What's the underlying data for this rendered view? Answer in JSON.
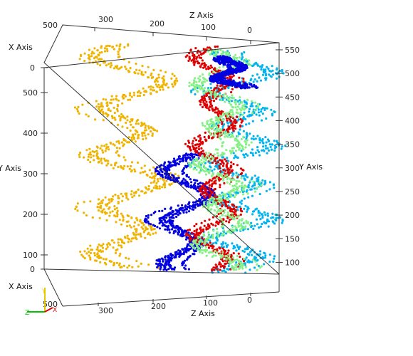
{
  "chart_data": {
    "type": "scatter",
    "title": "",
    "axes": {
      "x_title": "X Axis",
      "y_title": "Y Axis",
      "z_title": "Z Axis",
      "z_ticks": [
        "300",
        "200",
        "100",
        "0"
      ],
      "x_ticks_top": [
        "500",
        "0"
      ],
      "x_ticks_bottom": [
        "0",
        "500"
      ],
      "y_ticks_left": [
        "500",
        "400",
        "300",
        "200",
        "100"
      ],
      "y_ticks_right": [
        "550",
        "500",
        "450",
        "400",
        "350",
        "300",
        "250",
        "200",
        "150",
        "100"
      ],
      "y_range_left": [
        0,
        500
      ],
      "y_range_right": [
        75,
        565
      ],
      "z_range": [
        0,
        370
      ]
    },
    "series": [
      {
        "color": "#f0b400",
        "z_center": 240,
        "z_amplitude": 45,
        "y_range": [
          90,
          560
        ],
        "waves": 4.5
      },
      {
        "color": "#0000e0",
        "z_center": 150,
        "z_amplitude": 30,
        "y_range": [
          85,
          330
        ],
        "waves": 2.5
      },
      {
        "color": "#00b4f0",
        "z_center": 60,
        "z_amplitude": 40,
        "y_range": [
          80,
          545
        ],
        "waves": 6
      },
      {
        "color": "#e00000",
        "z_center": 100,
        "z_amplitude": 25,
        "y_range": [
          85,
          555
        ],
        "waves": 5
      },
      {
        "color": "#88f088",
        "z_center": 90,
        "z_amplitude": 30,
        "y_range": [
          85,
          550
        ],
        "waves": 5.5
      },
      {
        "color": "#0000e0",
        "z_center": 75,
        "z_amplitude": 20,
        "y_range": [
          470,
          535
        ],
        "waves": 1.5
      }
    ],
    "orientation_widget": {
      "x": "X",
      "y": "Y",
      "z": "Z",
      "x_color": "#e00000",
      "y_color": "#e6c800",
      "z_color": "#00c000"
    }
  }
}
